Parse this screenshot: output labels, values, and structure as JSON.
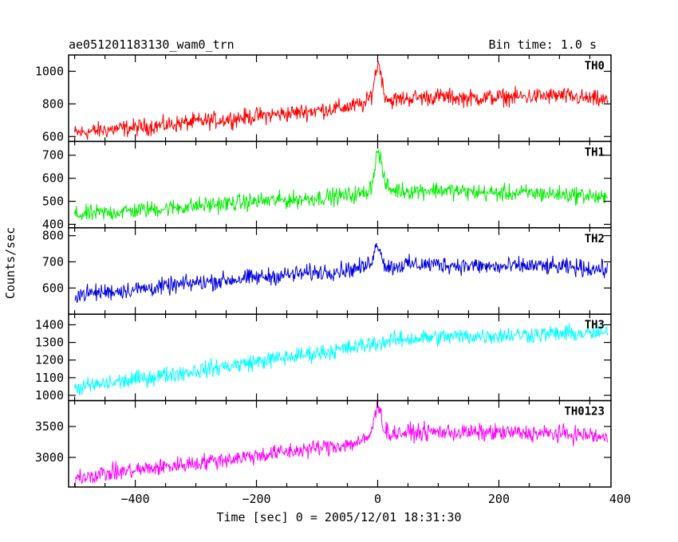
{
  "chart_data": {
    "type": "line",
    "title": "ae051201183130_wam0_trn",
    "subtitle": "Bin time: 1.0 s",
    "xlabel": "Time [sec] 0 = 2005/12/01 18:31:30",
    "ylabel": "Counts/sec",
    "xlim": [
      -510,
      385
    ],
    "xticks": [
      -400,
      -200,
      0,
      200,
      400
    ],
    "x": [
      -500,
      -450,
      -400,
      -350,
      -300,
      -250,
      -200,
      -150,
      -100,
      -50,
      -20,
      -10,
      0,
      5,
      10,
      20,
      50,
      100,
      150,
      200,
      250,
      300,
      350,
      380
    ],
    "panels": [
      {
        "name": "TH0",
        "color": "#ff0000",
        "ylim": [
          570,
          1100
        ],
        "yticks": [
          600,
          800,
          1000
        ],
        "values": [
          620,
          640,
          655,
          670,
          690,
          705,
          725,
          740,
          760,
          780,
          800,
          860,
          1050,
          1010,
          870,
          820,
          835,
          845,
          835,
          840,
          845,
          850,
          830,
          820
        ]
      },
      {
        "name": "TH1",
        "color": "#00ee00",
        "ylim": [
          385,
          760
        ],
        "yticks": [
          400,
          500,
          600,
          700
        ],
        "values": [
          440,
          450,
          460,
          470,
          480,
          490,
          500,
          505,
          515,
          525,
          535,
          570,
          720,
          690,
          590,
          550,
          545,
          550,
          540,
          535,
          535,
          530,
          525,
          505
        ]
      },
      {
        "name": "TH2",
        "color": "#0000dd",
        "ylim": [
          500,
          830
        ],
        "yticks": [
          600,
          700,
          800
        ],
        "values": [
          575,
          585,
          595,
          605,
          620,
          630,
          640,
          650,
          660,
          670,
          680,
          710,
          770,
          750,
          690,
          680,
          690,
          690,
          685,
          680,
          685,
          680,
          675,
          670
        ]
      },
      {
        "name": "TH3",
        "color": "#00ffff",
        "ylim": [
          970,
          1460
        ],
        "yticks": [
          1000,
          1100,
          1200,
          1300,
          1400
        ],
        "values": [
          1040,
          1065,
          1090,
          1115,
          1140,
          1165,
          1190,
          1215,
          1240,
          1265,
          1285,
          1290,
          1300,
          1300,
          1305,
          1310,
          1320,
          1330,
          1335,
          1340,
          1345,
          1350,
          1350,
          1350
        ]
      },
      {
        "name": "TH0123",
        "color": "#ff00ff",
        "ylim": [
          2520,
          3920
        ],
        "yticks": [
          3000,
          3500
        ],
        "values": [
          2680,
          2740,
          2790,
          2850,
          2910,
          2970,
          3030,
          3090,
          3150,
          3210,
          3270,
          3420,
          3870,
          3770,
          3460,
          3380,
          3400,
          3410,
          3400,
          3400,
          3390,
          3380,
          3360,
          3300
        ]
      }
    ]
  }
}
